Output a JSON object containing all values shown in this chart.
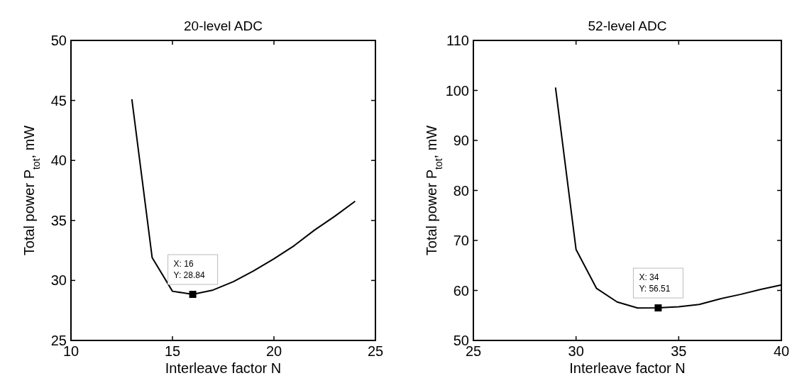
{
  "chart_data": [
    {
      "type": "line",
      "title": "20-level ADC",
      "xlabel": "Interleave factor N",
      "ylabel": "Total power P$_{tot}$, mW",
      "xlim": [
        10,
        25
      ],
      "xticks": [
        10,
        15,
        20,
        25
      ],
      "ylim": [
        25,
        50
      ],
      "yticks": [
        25,
        30,
        35,
        40,
        45,
        50
      ],
      "grid": false,
      "annotations": [
        {
          "text": "X: 16\nY: 28.84",
          "x": 16,
          "y": 28.84
        }
      ],
      "series": [
        {
          "type": "line",
          "color": "#000000",
          "marker": "none",
          "x": [
            13,
            14,
            15,
            16,
            17,
            18,
            19,
            20,
            21,
            22,
            23,
            24
          ],
          "values": [
            45.1,
            31.9,
            29.1,
            28.84,
            29.2,
            29.9,
            30.8,
            31.8,
            32.9,
            34.2,
            35.35,
            36.6
          ]
        },
        {
          "type": "scatter",
          "color": "#000000",
          "marker": "square",
          "x": [
            16
          ],
          "values": [
            28.84
          ]
        }
      ]
    },
    {
      "type": "line",
      "title": "52-level ADC",
      "xlabel": "Interleave factor N",
      "ylabel": "Total power P$_{tot}$, mW",
      "xlim": [
        25,
        40
      ],
      "xticks": [
        25,
        30,
        35,
        40
      ],
      "ylim": [
        50,
        110
      ],
      "yticks": [
        50,
        60,
        70,
        80,
        90,
        100,
        110
      ],
      "grid": false,
      "annotations": [
        {
          "text": "X: 34\nY: 56.51",
          "x": 34,
          "y": 56.51
        }
      ],
      "series": [
        {
          "type": "line",
          "color": "#000000",
          "marker": "none",
          "x": [
            29,
            30,
            31,
            32,
            33,
            34,
            35,
            36,
            37,
            38,
            39,
            40
          ],
          "values": [
            100.6,
            68.2,
            60.4,
            57.7,
            56.5,
            56.51,
            56.75,
            57.2,
            58.3,
            59.2,
            60.2,
            61.1
          ]
        },
        {
          "type": "scatter",
          "color": "#000000",
          "marker": "square",
          "x": [
            34
          ],
          "values": [
            56.51
          ]
        }
      ]
    }
  ]
}
